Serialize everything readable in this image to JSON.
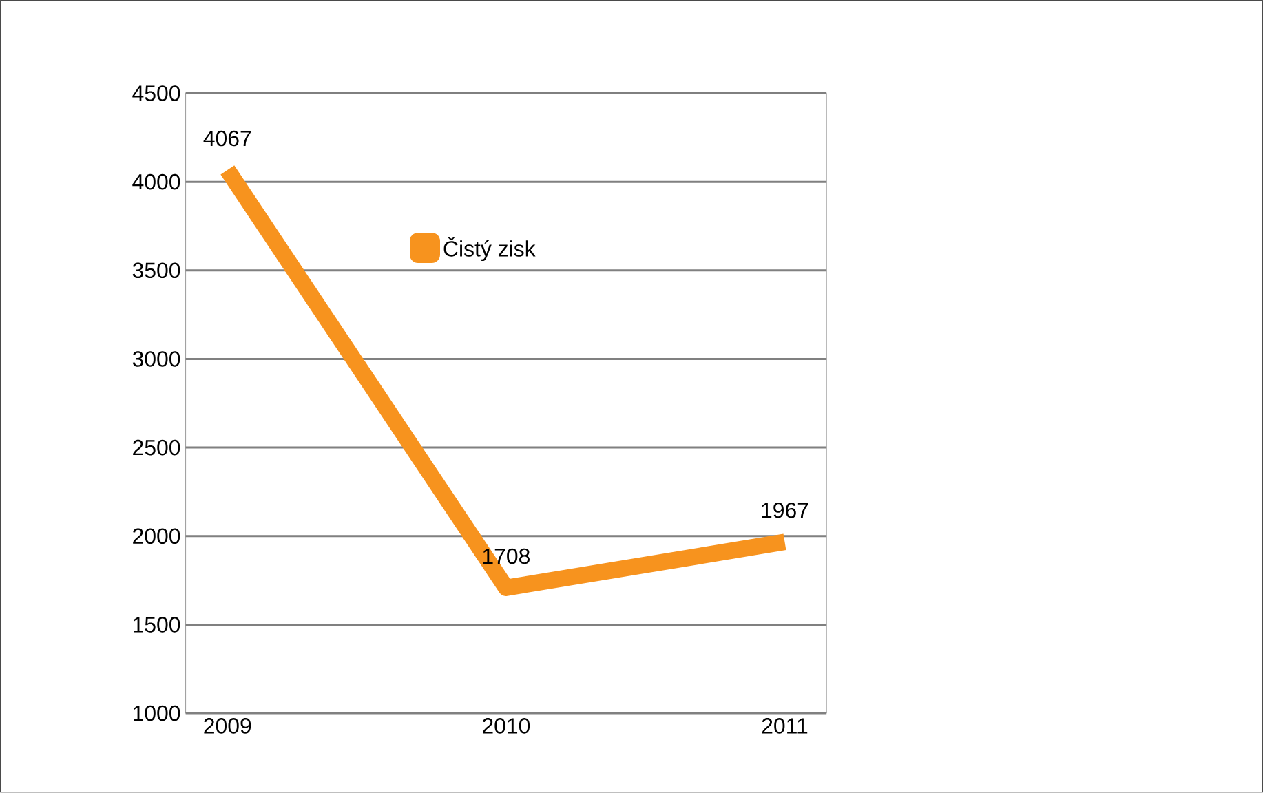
{
  "chart_data": {
    "type": "line",
    "categories": [
      "2009",
      "2010",
      "2011"
    ],
    "series": [
      {
        "name": "Čistý zisk",
        "color": "#f7931e",
        "values": [
          4067,
          1708,
          1967
        ]
      }
    ],
    "ylim": [
      1000,
      4500
    ],
    "yticks": [
      1000,
      1500,
      2000,
      2500,
      3000,
      3500,
      4000,
      4500
    ],
    "grid": "y",
    "legend": "top",
    "data_labels": true,
    "marker": "none",
    "line_style": "solid"
  }
}
